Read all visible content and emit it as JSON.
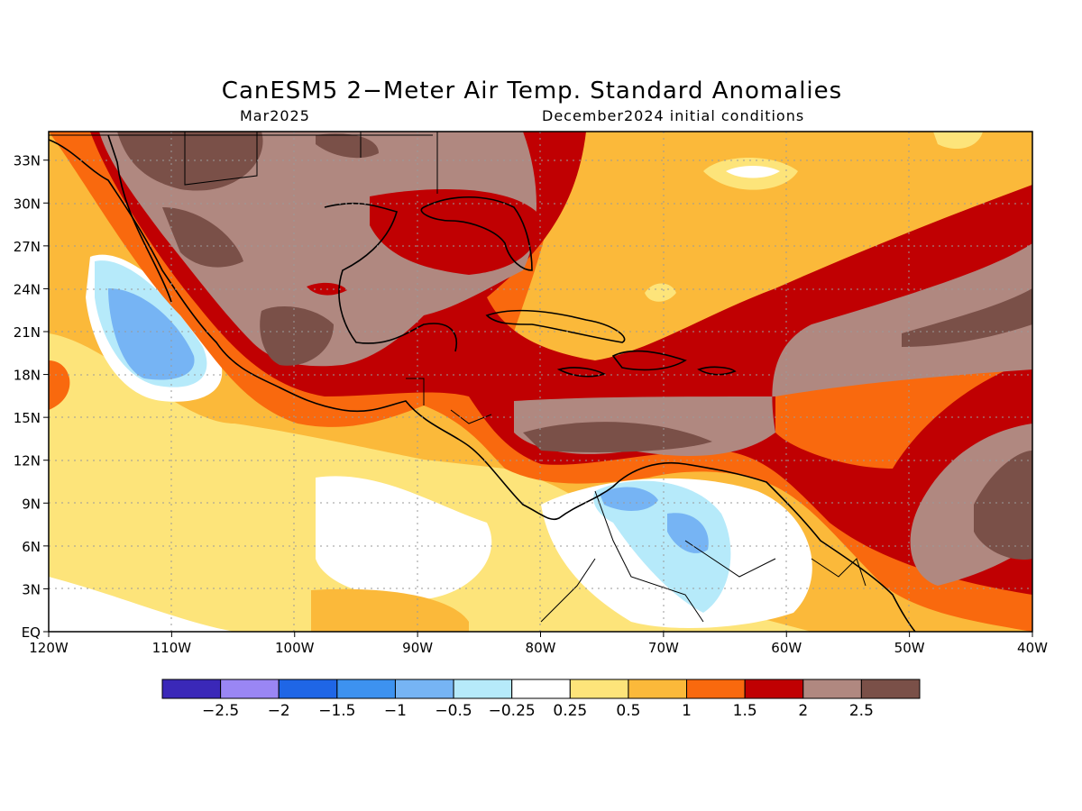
{
  "header": {
    "title": "CanESM5 2−Meter Air Temp. Standard Anomalies",
    "valid_month": "Mar2025",
    "init_conditions": "December2024 initial conditions"
  },
  "map": {
    "lon_range": [
      -120,
      -40
    ],
    "lat_range": [
      0,
      35
    ],
    "x_ticks": [
      "120W",
      "110W",
      "100W",
      "90W",
      "80W",
      "70W",
      "60W",
      "50W",
      "40W"
    ],
    "y_ticks": [
      "EQ",
      "3N",
      "6N",
      "9N",
      "12N",
      "15N",
      "18N",
      "21N",
      "24N",
      "27N",
      "30N",
      "33N"
    ],
    "grid_lines": "dotted"
  },
  "colorbar": {
    "colors": [
      "#3a28b8",
      "#9a86f4",
      "#1f66e6",
      "#3d92f0",
      "#76b4f4",
      "#b6eafa",
      "#ffffff",
      "#fde47a",
      "#fbb93a",
      "#f9690e",
      "#c00002",
      "#b08880",
      "#7a5048"
    ],
    "labels": [
      "−2.5",
      "−2",
      "−1.5",
      "−1",
      "−0.5",
      "−0.25",
      "0.25",
      "0.5",
      "1",
      "1.5",
      "2",
      "2.5"
    ]
  }
}
